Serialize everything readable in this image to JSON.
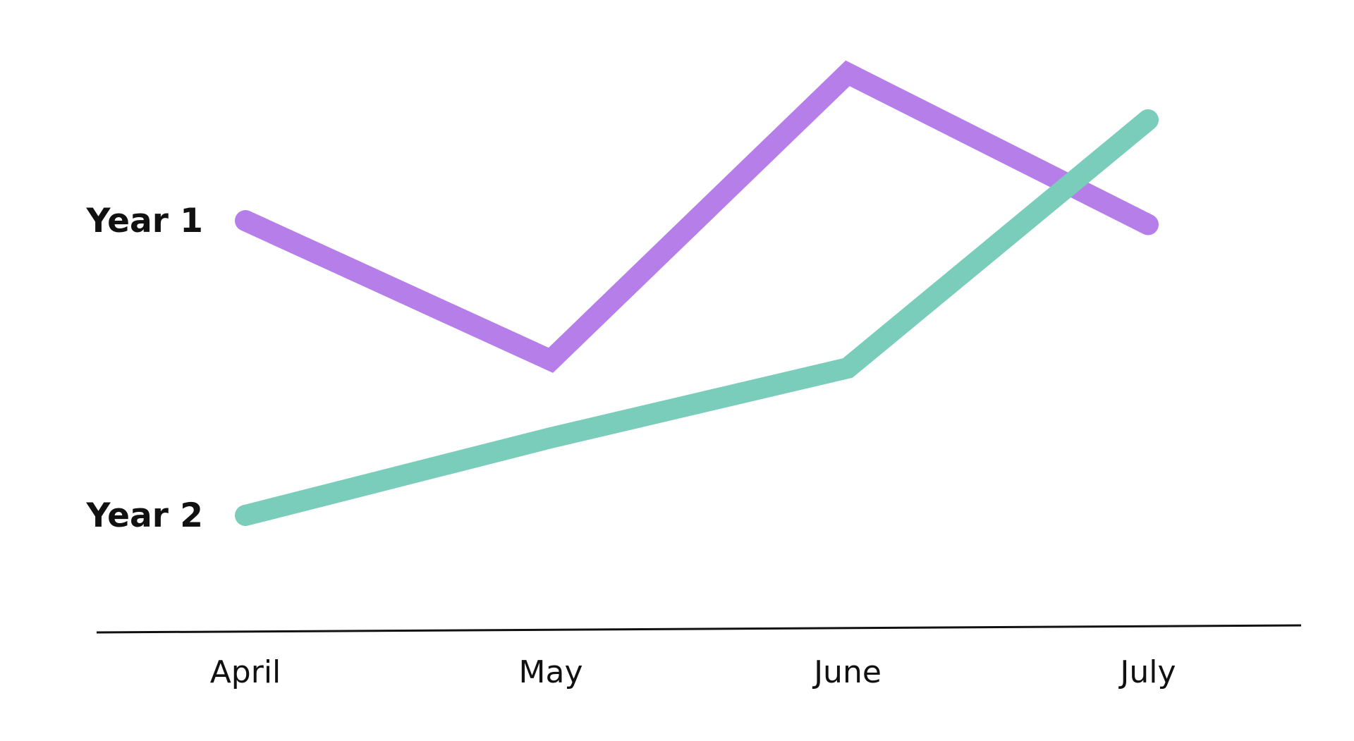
{
  "chart_data": {
    "type": "line",
    "categories": [
      "April",
      "May",
      "June",
      "July"
    ],
    "series": [
      {
        "name": "Year 1",
        "values": [
          66,
          30,
          104,
          65
        ],
        "color": "#B57EE9"
      },
      {
        "name": "Year 2",
        "values": [
          -10,
          10,
          28,
          92
        ],
        "color": "#7BCDBB"
      }
    ],
    "axes": {
      "x_axis_line": true,
      "y_axis_line": false,
      "y_ticks_shown": false
    },
    "legend": "inline-left",
    "grid": false,
    "background_color": "#FFFFFF",
    "axis_color": "#111111"
  }
}
